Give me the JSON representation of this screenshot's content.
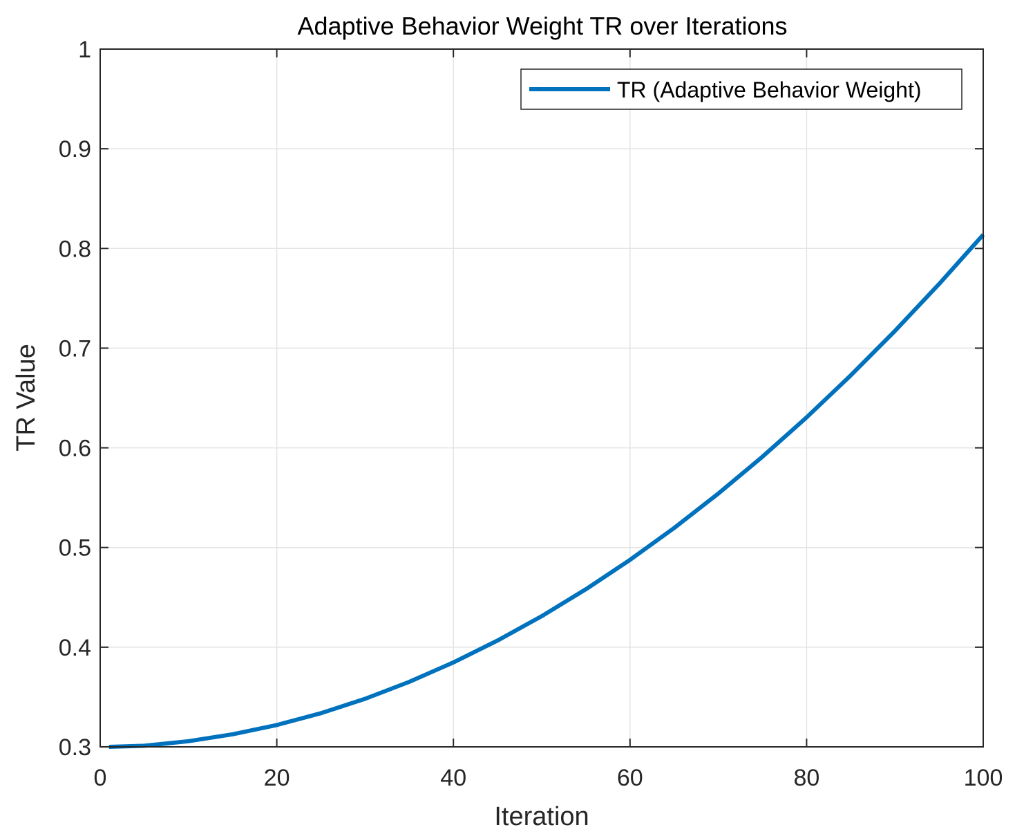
{
  "chart_data": {
    "type": "line",
    "title": "Adaptive Behavior Weight TR over Iterations",
    "xlabel": "Iteration",
    "ylabel": "TR Value",
    "xlim": [
      0,
      100
    ],
    "ylim": [
      0.3,
      1
    ],
    "xticks": [
      0,
      20,
      40,
      60,
      80,
      100
    ],
    "xtick_labels": [
      "0",
      "20",
      "40",
      "60",
      "80",
      "100"
    ],
    "yticks": [
      0.3,
      0.4,
      0.5,
      0.6,
      0.7,
      0.8,
      0.9,
      1
    ],
    "ytick_labels": [
      "0.3",
      "0.4",
      "0.5",
      "0.6",
      "0.7",
      "0.8",
      "0.9",
      "1"
    ],
    "grid": true,
    "legend_position": "top-right",
    "series": [
      {
        "name": "TR (Adaptive Behavior Weight)",
        "color": "#0072BD",
        "x": [
          1,
          5,
          10,
          15,
          20,
          25,
          30,
          35,
          40,
          45,
          50,
          55,
          60,
          65,
          70,
          75,
          80,
          85,
          90,
          95,
          100
        ],
        "y": [
          0.3,
          0.3011,
          0.3057,
          0.3126,
          0.3219,
          0.3338,
          0.3482,
          0.3652,
          0.3847,
          0.4067,
          0.4311,
          0.4581,
          0.4876,
          0.5196,
          0.5541,
          0.5911,
          0.6306,
          0.6727,
          0.7172,
          0.7643,
          0.8138
        ]
      }
    ]
  }
}
